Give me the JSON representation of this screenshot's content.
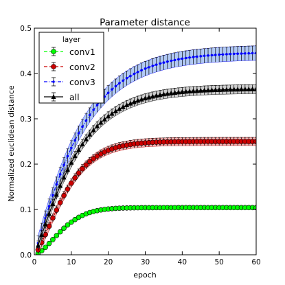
{
  "chart_data": {
    "type": "line",
    "title": "Parameter distance",
    "xlabel": "epoch",
    "ylabel": "Normalized euclidean distance",
    "xlim": [
      0,
      60
    ],
    "ylim": [
      0,
      0.5
    ],
    "xticks": [
      "0",
      "10",
      "20",
      "30",
      "40",
      "50",
      "60"
    ],
    "yticks": [
      "0.0",
      "0.1",
      "0.2",
      "0.3",
      "0.4",
      "0.5"
    ],
    "grid": false,
    "legend": {
      "title": "layer",
      "placement": "top-left"
    },
    "series": [
      {
        "name": "conv1",
        "color": "#00ff00",
        "band_color": "#9dee9d",
        "marker": "circle",
        "line_style": "dashed",
        "asymptote": 0.104,
        "tau": 9.0,
        "power": 1.6,
        "error": 0.0035
      },
      {
        "name": "conv2",
        "color": "#cc0000",
        "band_color": "#f2a9a9",
        "marker": "circle",
        "line_style": "dashed",
        "asymptote": 0.25,
        "tau": 10.0,
        "power": 1.35,
        "error": 0.009
      },
      {
        "name": "conv3",
        "color": "#0000ff",
        "band_color": "#a9c4f5",
        "marker": "dot",
        "line_style": "dashdot",
        "asymptote": 0.447,
        "tau": 13.0,
        "power": 1.1,
        "error": 0.016
      },
      {
        "name": "all",
        "color": "#000000",
        "band_color": "#c8c8c8",
        "marker": "triangle",
        "line_style": "solid",
        "asymptote": 0.366,
        "tau": 12.0,
        "power": 1.15,
        "error": 0.01
      }
    ],
    "x": [
      1,
      2,
      3,
      4,
      5,
      6,
      7,
      8,
      9,
      10,
      11,
      12,
      13,
      14,
      15,
      16,
      17,
      18,
      19,
      20,
      21,
      22,
      23,
      24,
      25,
      26,
      27,
      28,
      29,
      30,
      31,
      32,
      33,
      34,
      35,
      36,
      37,
      38,
      39,
      40,
      41,
      42,
      43,
      44,
      45,
      46,
      47,
      48,
      49,
      50,
      51,
      52,
      53,
      54,
      55,
      56,
      57,
      58,
      59,
      60
    ]
  }
}
